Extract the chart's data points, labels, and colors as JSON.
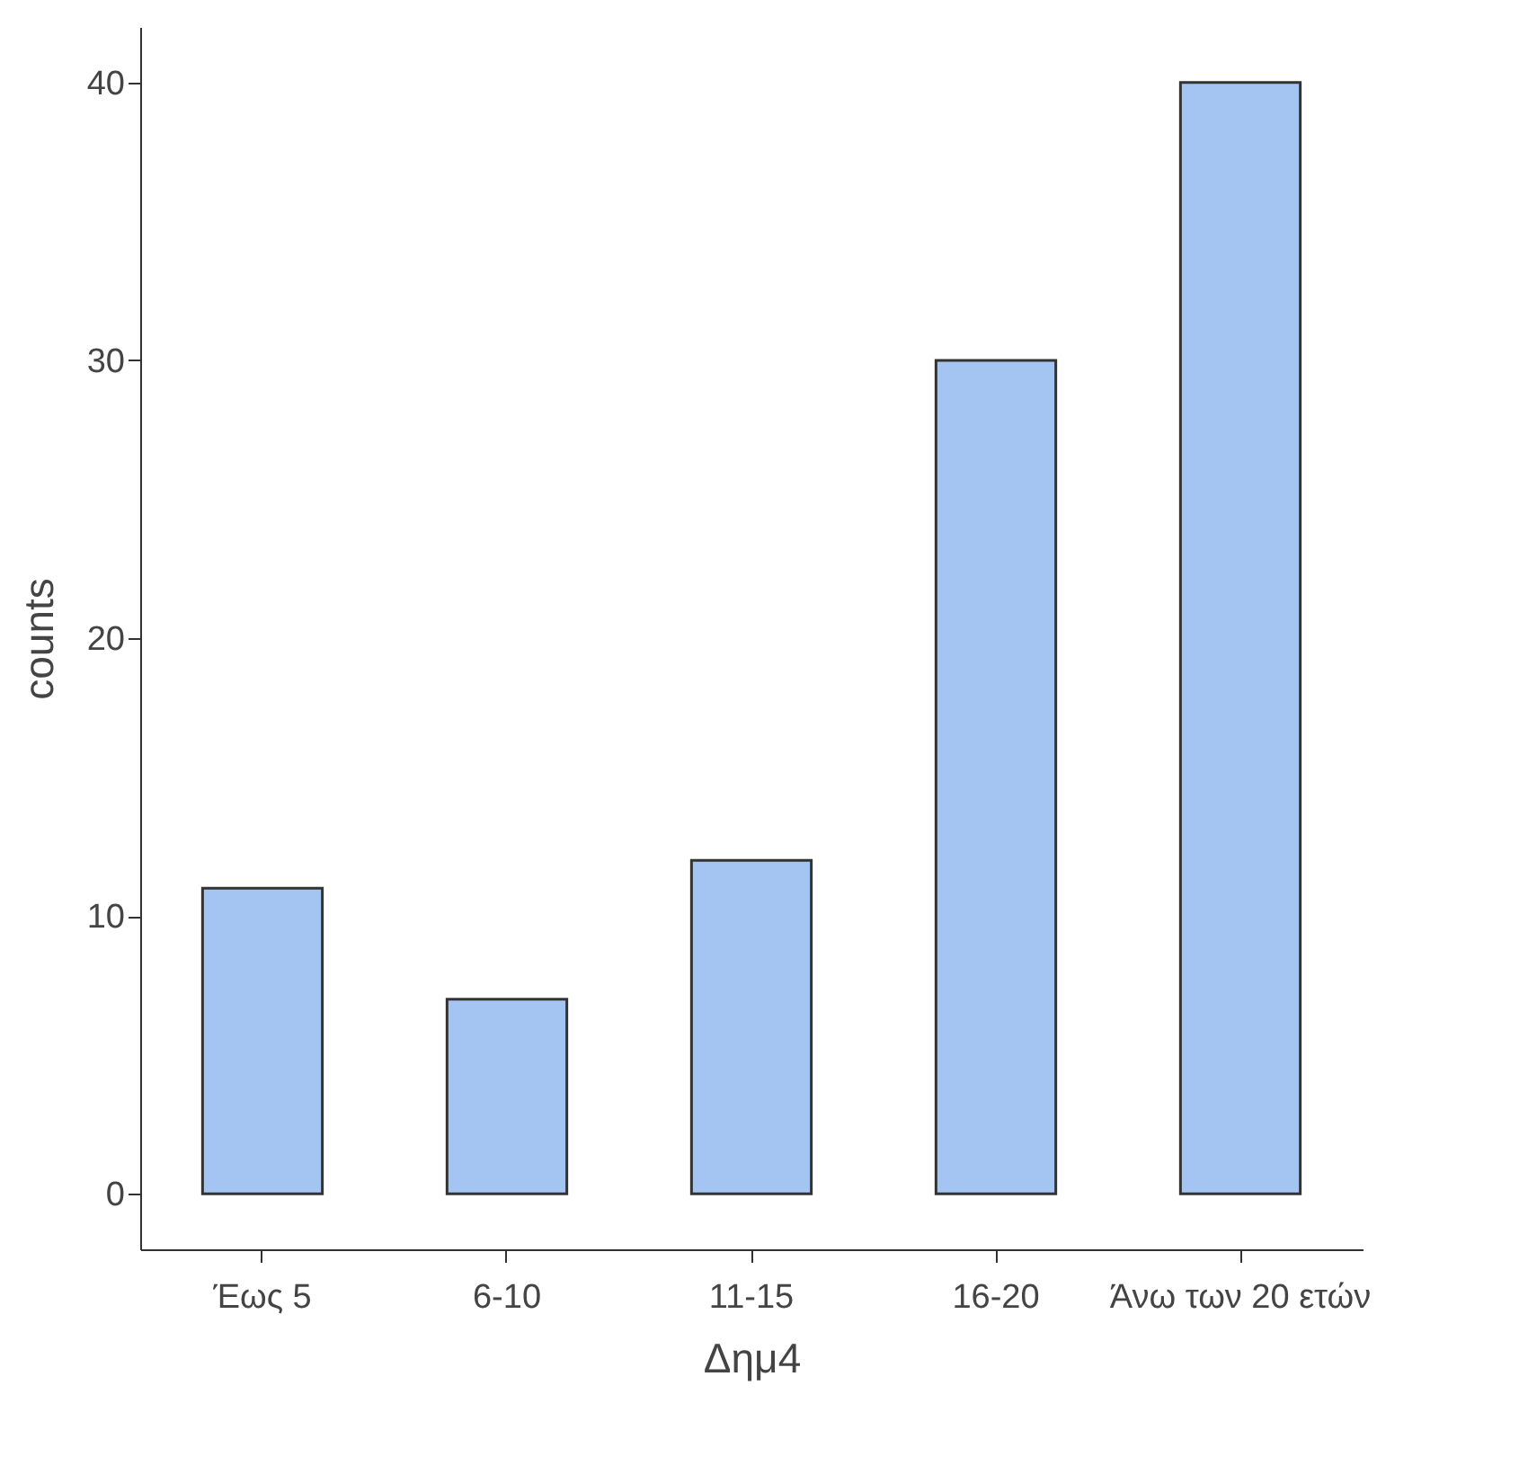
{
  "chart_data": {
    "type": "bar",
    "xlabel": "Δημ4",
    "ylabel": "counts",
    "categories": [
      "Έως 5",
      "6-10",
      "11-15",
      "16-20",
      "Άνω των 20 ετών"
    ],
    "values": [
      11,
      7,
      12,
      30,
      40
    ],
    "color": "#a4c4f1",
    "ylim": [
      -2,
      42
    ],
    "yticks": [
      0,
      10,
      20,
      30,
      40
    ],
    "grid": false
  }
}
